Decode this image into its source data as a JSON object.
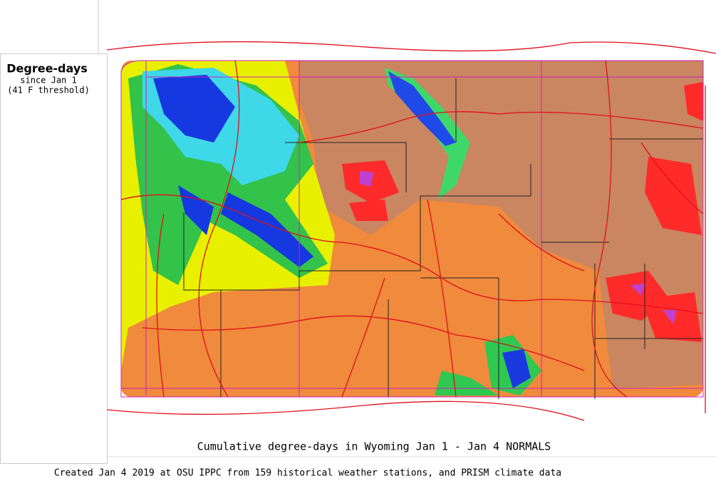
{
  "legend": {
    "title": "Degree-days",
    "subtitle": "since Jan 1",
    "note": "(41 F threshold)"
  },
  "map": {
    "caption": "Cumulative degree-days in Wyoming  Jan 1 - Jan 4 NORMALS"
  },
  "footer": {
    "credit": "Created Jan 4 2019 at OSU IPPC from 159 historical weather stations, and PRISM climate data"
  }
}
